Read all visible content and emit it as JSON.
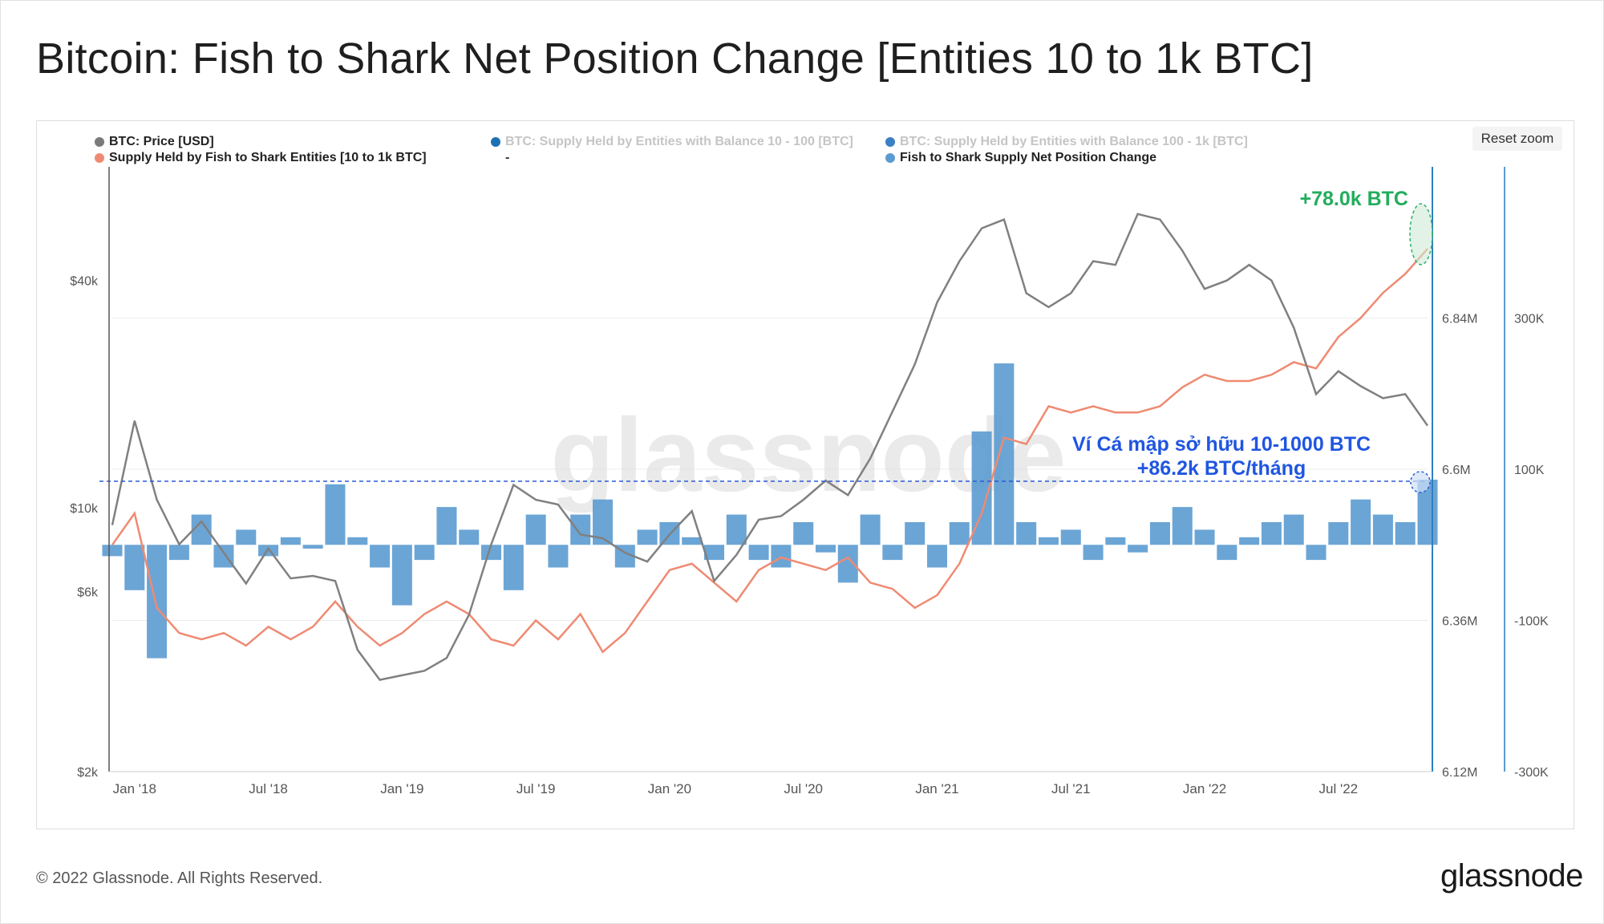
{
  "title": "Bitcoin: Fish to Shark Net Position Change [Entities 10 to 1k BTC]",
  "reset_zoom": "Reset zoom",
  "footer": {
    "copyright": "© 2022 Glassnode. All Rights Reserved.",
    "logo": "glassnode"
  },
  "watermark": "glassnode",
  "legend": [
    {
      "label": "BTC: Price [USD]",
      "color": "#7a7a7a",
      "active": true
    },
    {
      "label": "Supply Held by Fish to Shark Entities [10 to 1k BTC]",
      "color": "#ef8a72",
      "active": true
    },
    {
      "label": "BTC: Supply Held by Entities with Balance 10 - 100 [BTC]",
      "color": "#1f6fb5",
      "active": false
    },
    {
      "label": "-",
      "color": "",
      "active": false
    },
    {
      "label": "BTC: Supply Held by Entities with Balance 100 - 1k [BTC]",
      "color": "#3b7fc4",
      "active": false
    },
    {
      "label": "Fish to Shark Supply Net Position Change",
      "color": "#5b9bd0",
      "active": true
    }
  ],
  "annotations": {
    "top_label": "+78.0k BTC",
    "mid_line1": "Ví Cá mập sở hữu 10-1000 BTC",
    "mid_line2": "+86.2k BTC/tháng"
  },
  "chart_data": {
    "type": "line",
    "x_axis": {
      "ticks": [
        "Jan '18",
        "Jul '18",
        "Jan '19",
        "Jul '19",
        "Jan '20",
        "Jul '20",
        "Jan '21",
        "Jul '21",
        "Jan '22",
        "Jul '22"
      ],
      "range": [
        "2017-12",
        "2022-11"
      ]
    },
    "y_left": {
      "label": "BTC: Price [USD]",
      "scale": "log",
      "ticks": [
        "$2k",
        "$6k",
        "$10k",
        "$40k"
      ],
      "range": [
        2000,
        80000
      ]
    },
    "y_right1": {
      "ticks": [
        "6.12M",
        "6.36M",
        "6.6M",
        "6.84M"
      ],
      "range": [
        6120000,
        7080000
      ]
    },
    "y_right2": {
      "ticks": [
        "-300K",
        "-100K",
        "100K",
        "300K"
      ],
      "range": [
        -300000,
        500000
      ]
    },
    "x": [
      "2017-12",
      "2018-01",
      "2018-02",
      "2018-03",
      "2018-04",
      "2018-05",
      "2018-06",
      "2018-07",
      "2018-08",
      "2018-09",
      "2018-10",
      "2018-11",
      "2018-12",
      "2019-01",
      "2019-02",
      "2019-03",
      "2019-04",
      "2019-05",
      "2019-06",
      "2019-07",
      "2019-08",
      "2019-09",
      "2019-10",
      "2019-11",
      "2019-12",
      "2020-01",
      "2020-02",
      "2020-03",
      "2020-04",
      "2020-05",
      "2020-06",
      "2020-07",
      "2020-08",
      "2020-09",
      "2020-10",
      "2020-11",
      "2020-12",
      "2021-01",
      "2021-02",
      "2021-03",
      "2021-04",
      "2021-05",
      "2021-06",
      "2021-07",
      "2021-08",
      "2021-09",
      "2021-10",
      "2021-11",
      "2021-12",
      "2022-01",
      "2022-02",
      "2022-03",
      "2022-04",
      "2022-05",
      "2022-06",
      "2022-07",
      "2022-08",
      "2022-09",
      "2022-10",
      "2022-11"
    ],
    "series": [
      {
        "name": "BTC: Price [USD]",
        "axis": "left",
        "values": [
          9000,
          17000,
          10500,
          8000,
          9200,
          7600,
          6300,
          7800,
          6500,
          6600,
          6400,
          4200,
          3500,
          3600,
          3700,
          4000,
          5200,
          8000,
          11500,
          10500,
          10200,
          8500,
          8300,
          7600,
          7200,
          8500,
          9800,
          6400,
          7500,
          9300,
          9500,
          10500,
          11800,
          10800,
          13500,
          18000,
          24000,
          35000,
          45000,
          55000,
          58000,
          37000,
          34000,
          37000,
          45000,
          44000,
          60000,
          58000,
          48000,
          38000,
          40000,
          44000,
          40000,
          30000,
          20000,
          23000,
          21000,
          19500,
          20000,
          16500
        ]
      },
      {
        "name": "Supply Held by Fish to Shark Entities [10 to 1k BTC]",
        "axis": "right1",
        "values": [
          6480000,
          6530000,
          6380000,
          6340000,
          6330000,
          6340000,
          6320000,
          6350000,
          6330000,
          6350000,
          6390000,
          6350000,
          6320000,
          6340000,
          6370000,
          6390000,
          6370000,
          6330000,
          6320000,
          6360000,
          6330000,
          6370000,
          6310000,
          6340000,
          6390000,
          6440000,
          6450000,
          6420000,
          6390000,
          6440000,
          6460000,
          6450000,
          6440000,
          6460000,
          6420000,
          6410000,
          6380000,
          6400000,
          6450000,
          6530000,
          6650000,
          6640000,
          6700000,
          6690000,
          6700000,
          6690000,
          6690000,
          6700000,
          6730000,
          6750000,
          6740000,
          6740000,
          6750000,
          6770000,
          6760000,
          6810000,
          6840000,
          6880000,
          6910000,
          6950000
        ]
      },
      {
        "name": "Fish to Shark Supply Net Position Change",
        "axis": "right2",
        "type": "bar",
        "values": [
          -15000,
          -60000,
          -150000,
          -20000,
          40000,
          -30000,
          20000,
          -15000,
          10000,
          -5000,
          80000,
          10000,
          -30000,
          -80000,
          -20000,
          50000,
          20000,
          -20000,
          -60000,
          40000,
          -30000,
          40000,
          60000,
          -30000,
          20000,
          30000,
          10000,
          -20000,
          40000,
          -20000,
          -30000,
          30000,
          -10000,
          -50000,
          40000,
          -20000,
          30000,
          -30000,
          30000,
          150000,
          240000,
          30000,
          10000,
          20000,
          -20000,
          10000,
          -10000,
          30000,
          50000,
          20000,
          -20000,
          10000,
          30000,
          40000,
          -20000,
          30000,
          60000,
          40000,
          30000,
          86200
        ]
      }
    ]
  }
}
